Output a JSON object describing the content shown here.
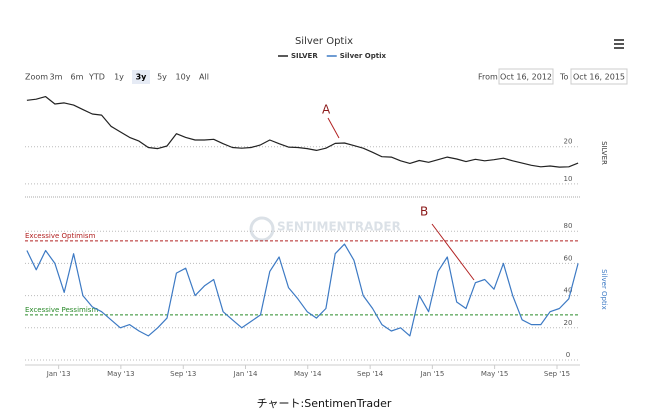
{
  "chart_data": {
    "type": "line",
    "title": "Silver Optix",
    "x": [
      2012.83,
      2012.88,
      2012.93,
      2012.98,
      2013.03,
      2013.08,
      2013.13,
      2013.18,
      2013.23,
      2013.28,
      2013.33,
      2013.38,
      2013.43,
      2013.48,
      2013.53,
      2013.58,
      2013.63,
      2013.68,
      2013.73,
      2013.78,
      2013.83,
      2013.88,
      2013.93,
      2013.98,
      2014.03,
      2014.08,
      2014.13,
      2014.18,
      2014.23,
      2014.28,
      2014.33,
      2014.38,
      2014.43,
      2014.48,
      2014.53,
      2014.58,
      2014.63,
      2014.68,
      2014.73,
      2014.78,
      2014.83,
      2014.88,
      2014.93,
      2014.98,
      2015.03,
      2015.08,
      2015.13,
      2015.18,
      2015.23,
      2015.28,
      2015.33,
      2015.38,
      2015.43,
      2015.48,
      2015.53,
      2015.58,
      2015.63,
      2015.68,
      2015.73,
      2015.78
    ],
    "xlim": [
      2012.82,
      2015.79
    ],
    "xticks": [
      {
        "value": 2013,
        "label": "Jan '13"
      },
      {
        "value": 2013.333,
        "label": "May '13"
      },
      {
        "value": 2013.667,
        "label": "Sep '13"
      },
      {
        "value": 2014,
        "label": "Jan '14"
      },
      {
        "value": 2014.333,
        "label": "May '14"
      },
      {
        "value": 2014.667,
        "label": "Sep '14"
      },
      {
        "value": 2015,
        "label": "Jan '15"
      },
      {
        "value": 2015.333,
        "label": "May '15"
      },
      {
        "value": 2015.667,
        "label": "Sep '15"
      }
    ],
    "series": [
      {
        "name": "SILVER",
        "color": "#222222",
        "axis": "y",
        "values": [
          32.5,
          32.8,
          33.5,
          31.5,
          31.8,
          31.2,
          30.0,
          28.8,
          28.5,
          25.5,
          24.0,
          22.5,
          21.5,
          19.8,
          19.5,
          20.2,
          23.5,
          22.5,
          21.8,
          21.8,
          22.0,
          20.8,
          19.8,
          19.6,
          19.8,
          20.5,
          21.8,
          20.8,
          19.9,
          19.8,
          19.5,
          19.0,
          19.6,
          20.9,
          21.0,
          20.3,
          19.6,
          18.5,
          17.3,
          17.2,
          16.2,
          15.5,
          16.3,
          15.8,
          16.5,
          17.2,
          16.7,
          16.0,
          16.6,
          16.2,
          16.5,
          16.9,
          16.2,
          15.6,
          15.0,
          14.6,
          14.8,
          14.5,
          14.6,
          15.6
        ]
      },
      {
        "name": "Silver Optix",
        "color": "#3d7ac4",
        "axis": "y2",
        "values": [
          68,
          56,
          68,
          60,
          42,
          66,
          40,
          33,
          30,
          25,
          20,
          22,
          18,
          15,
          20,
          26,
          54,
          57,
          40,
          46,
          50,
          30,
          25,
          20,
          24,
          28,
          55,
          64,
          45,
          38,
          30,
          26,
          32,
          66,
          72,
          62,
          40,
          32,
          22,
          18,
          20,
          15,
          40,
          30,
          55,
          64,
          36,
          32,
          48,
          50,
          44,
          60,
          40,
          25,
          22,
          22,
          30,
          32,
          38,
          60
        ]
      }
    ],
    "ylabel": "SILVER",
    "ylim": [
      7,
      35
    ],
    "yticks": [
      10,
      20
    ],
    "y2label": "Silver Optix",
    "y2lim": [
      0,
      100
    ],
    "y2ticks": [
      0,
      20,
      40,
      60,
      80
    ],
    "grid": true,
    "reference_lines": [
      {
        "label": "Excessive Optimism",
        "value": 74,
        "color": "#b22222"
      },
      {
        "label": "Excessive Pessimism",
        "value": 28,
        "color": "#2a8a2a"
      }
    ],
    "annotations": [
      "A",
      "B"
    ]
  },
  "range_selector": {
    "label": "Zoom",
    "buttons": [
      "3m",
      "6m",
      "YTD",
      "1y",
      "3y",
      "5y",
      "10y",
      "All"
    ],
    "selected": "3y"
  },
  "date_range": {
    "from_label": "From",
    "from": "Oct 16, 2012",
    "to_label": "To",
    "to": "Oct 16, 2015"
  },
  "watermark": "SENTIMENTRADER",
  "caption": "チャート:SentimenTrader"
}
